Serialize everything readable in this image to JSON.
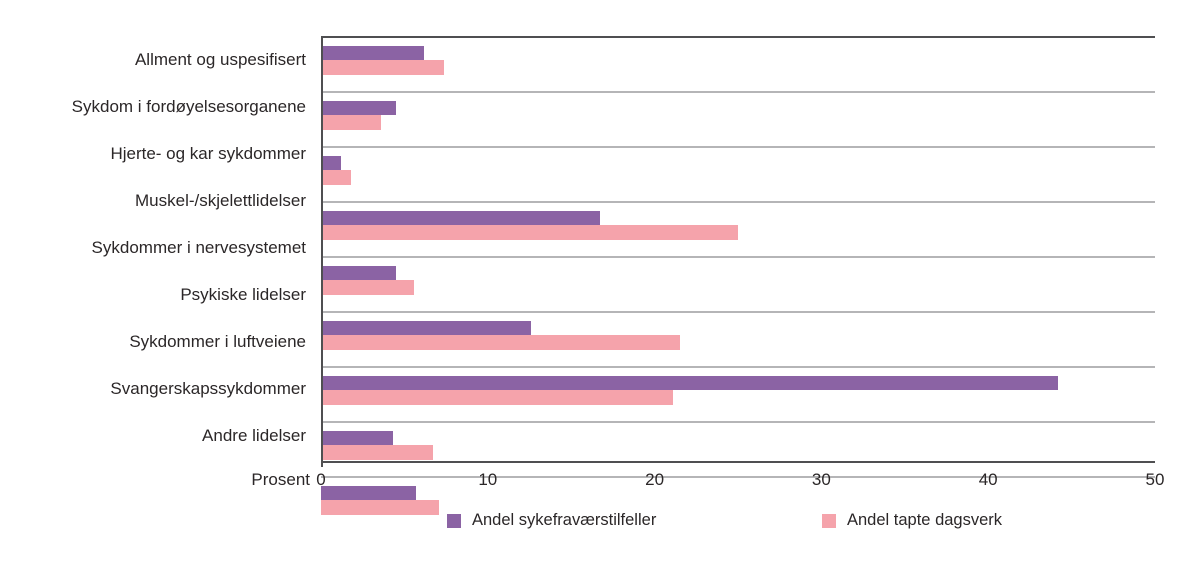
{
  "chart_data": {
    "type": "bar",
    "orientation": "horizontal",
    "title": "",
    "xlabel": "Prosent",
    "ylabel": "",
    "xlim": [
      0,
      50
    ],
    "x_ticks": [
      "0",
      "10",
      "20",
      "30",
      "40",
      "50"
    ],
    "grid": "horizontal category separators, no vertical gridlines",
    "legend_position": "bottom",
    "categories": [
      "Allment og uspesifisert",
      "Sykdom i fordøyelsesorganene",
      "Hjerte- og kar sykdommer",
      "Muskel-/skjelettlidelser",
      "Sykdommer i nervesystemet",
      "Psykiske lidelser",
      "Sykdommer i luftveiene",
      "Svangerskapssykdommer",
      "Andre lidelser"
    ],
    "series": [
      {
        "name": "Andel sykefraværstilfeller",
        "color": "#8b63a4",
        "values": [
          6.2,
          4.5,
          1.2,
          16.7,
          4.5,
          12.6,
          44.2,
          4.3,
          5.7
        ]
      },
      {
        "name": "Andel tapte dagsverk",
        "color": "#f5a3ab",
        "values": [
          7.4,
          3.6,
          1.8,
          25.0,
          5.6,
          21.5,
          21.1,
          6.7,
          7.1
        ]
      }
    ],
    "colors": {
      "axis_line": "#4f4f51",
      "separator_line": "#b5b5b7",
      "text": "#2b2728"
    }
  }
}
